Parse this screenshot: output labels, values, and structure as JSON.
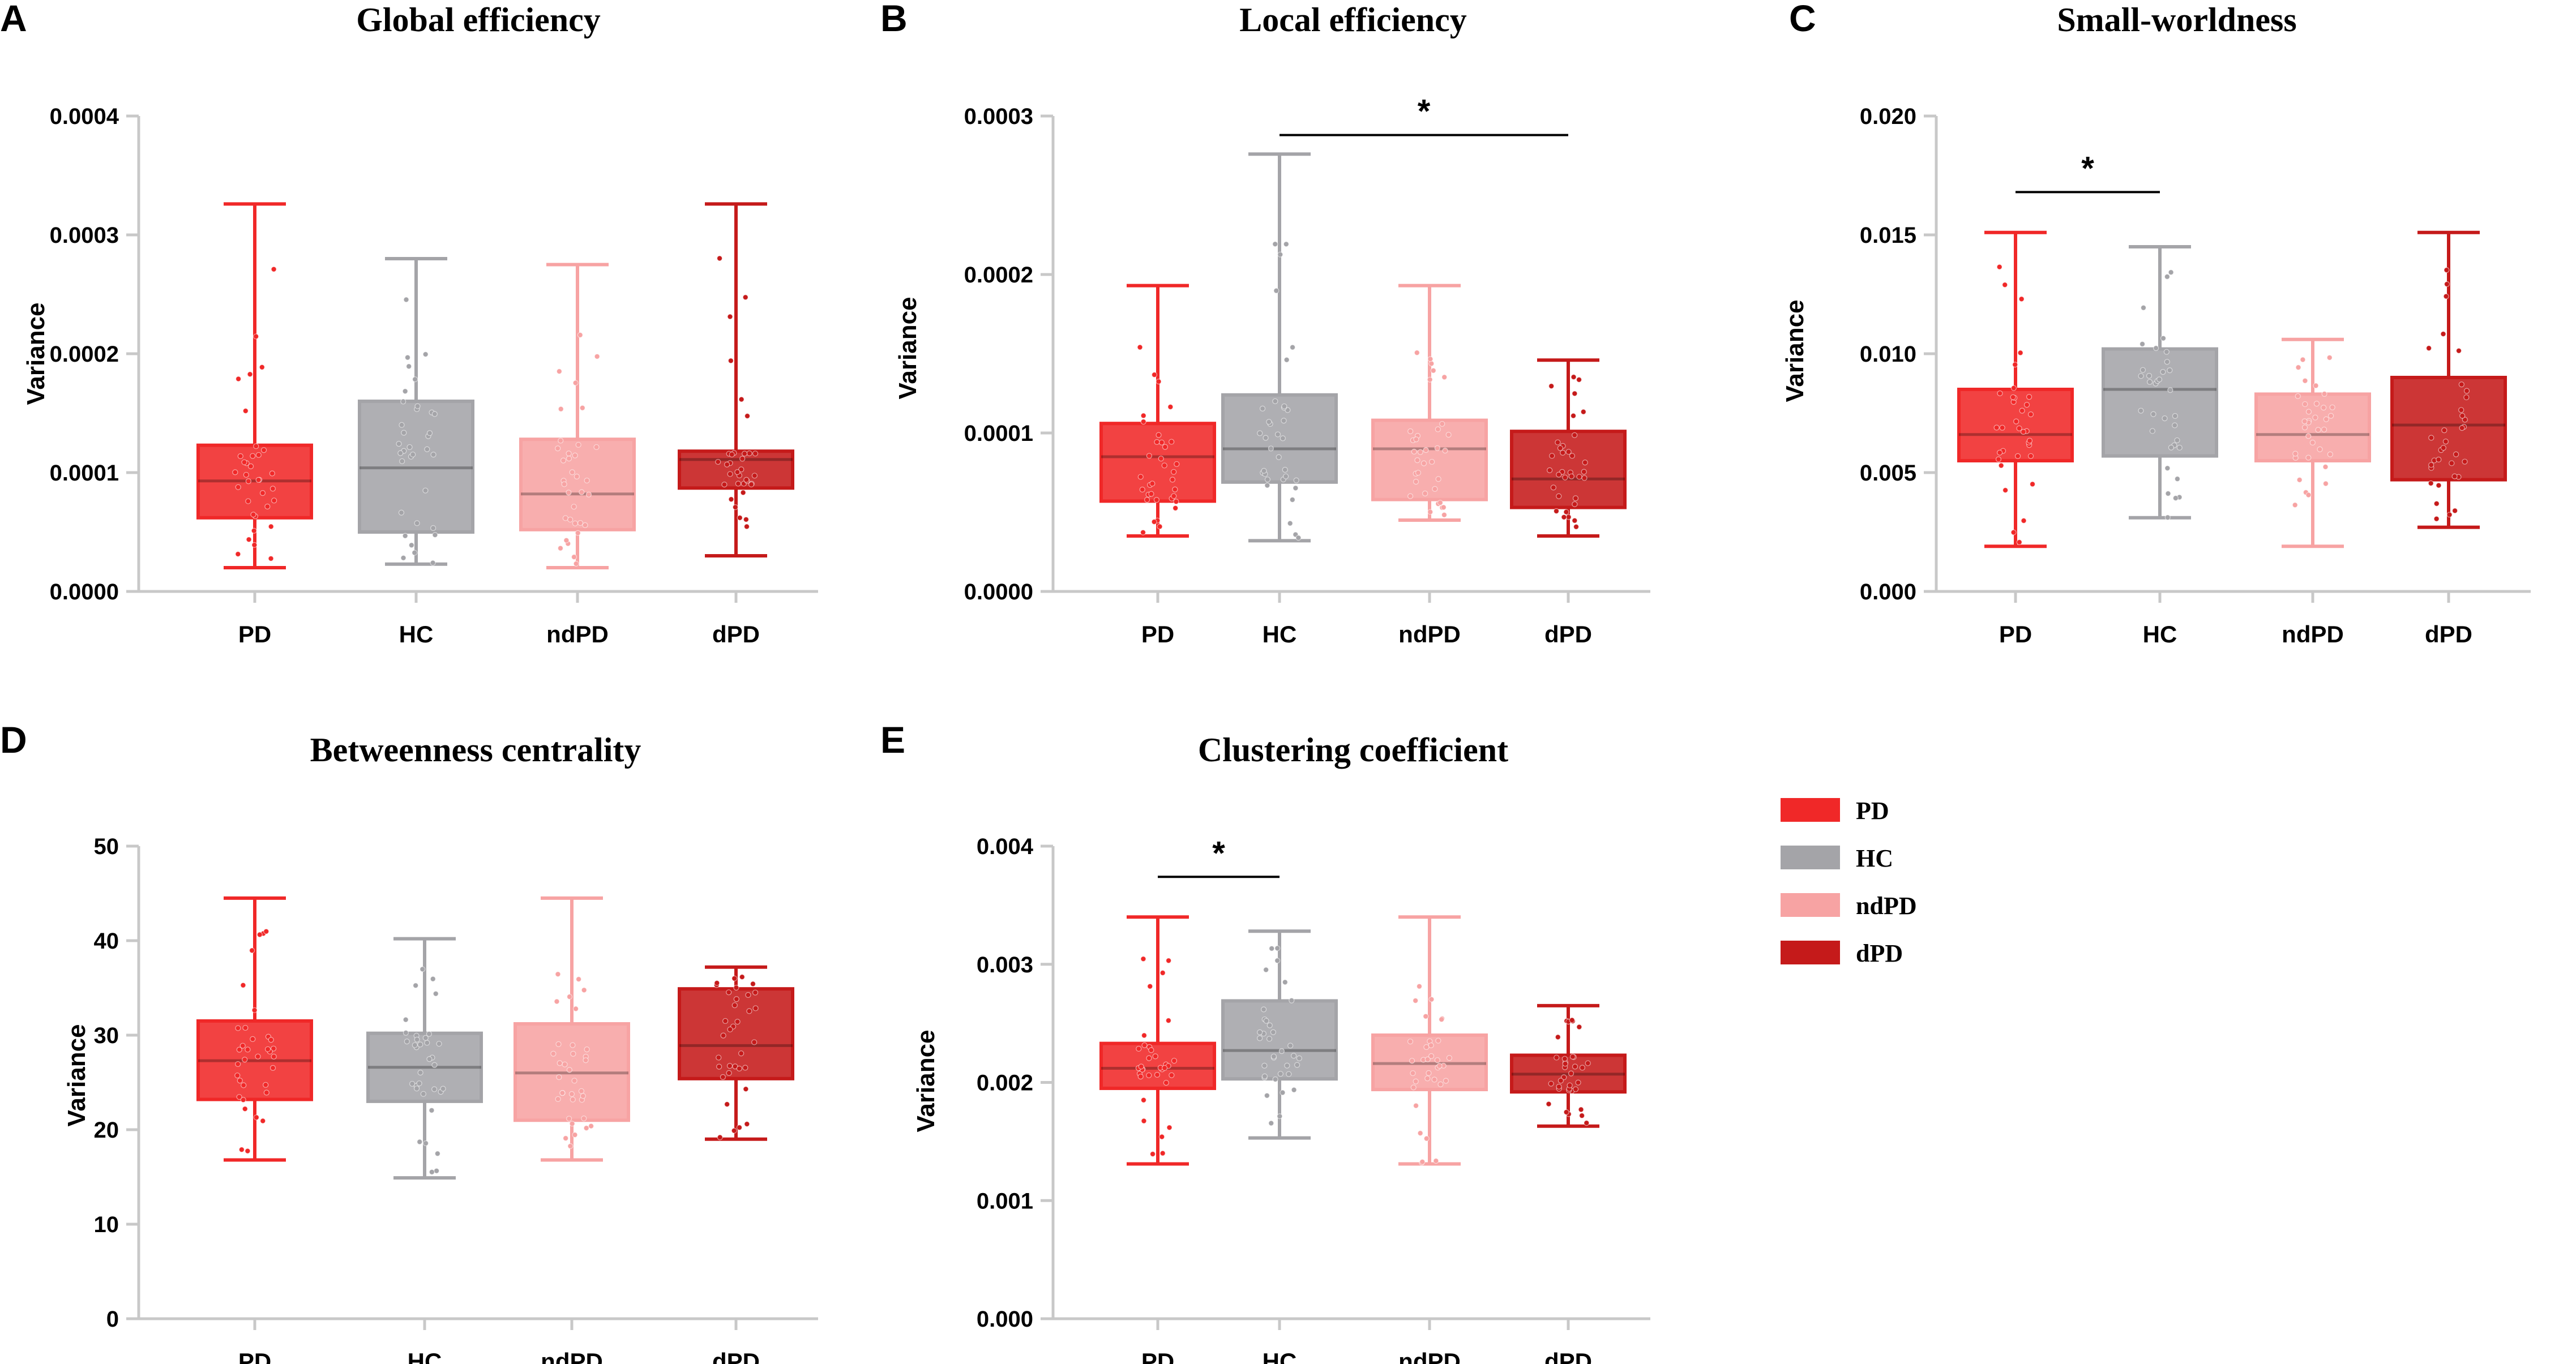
{
  "colors": {
    "PD": "#f02828",
    "HC": "#a4a4a8",
    "ndPD": "#f7a3a3",
    "dPD": "#c51a1a",
    "axis": "#c8c8c8"
  },
  "legend": {
    "entries": [
      {
        "label": "PD",
        "color": "#f02828"
      },
      {
        "label": "HC",
        "color": "#a4a4a8"
      },
      {
        "label": "ndPD",
        "color": "#f7a3a3"
      },
      {
        "label": "dPD",
        "color": "#c51a1a"
      }
    ]
  },
  "chart_data": [
    {
      "id": "A",
      "type": "box",
      "letter": "A",
      "title": "Global efficiency",
      "ylabel": "Variance",
      "ylim": [
        0,
        0.0004
      ],
      "yticks": [
        0,
        0.0001,
        0.0002,
        0.0003,
        0.0004
      ],
      "ytick_labels": [
        "0.0000",
        "0.0001",
        "0.0002",
        "0.0003",
        "0.0004"
      ],
      "categories": [
        "PD",
        "HC",
        "ndPD",
        "dPD"
      ],
      "boxes": [
        {
          "min": 2e-05,
          "q1": 6.2e-05,
          "median": 9.3e-05,
          "q3": 0.000123,
          "max": 0.000326
        },
        {
          "min": 2.3e-05,
          "q1": 5e-05,
          "median": 0.000104,
          "q3": 0.00016,
          "max": 0.00028
        },
        {
          "min": 2e-05,
          "q1": 5.2e-05,
          "median": 8.2e-05,
          "q3": 0.000128,
          "max": 0.000275
        },
        {
          "min": 3e-05,
          "q1": 8.7e-05,
          "median": 0.000111,
          "q3": 0.000118,
          "max": 0.000326
        }
      ],
      "significance": []
    },
    {
      "id": "B",
      "type": "box",
      "letter": "B",
      "title": "Local efficiency",
      "ylabel": "Variance",
      "ylim": [
        0,
        0.0003
      ],
      "yticks": [
        0,
        0.0001,
        0.0002,
        0.0003
      ],
      "ytick_labels": [
        "0.0000",
        "0.0001",
        "0.0002",
        "0.0003"
      ],
      "categories": [
        "PD",
        "HC",
        "ndPD",
        "dPD"
      ],
      "boxes": [
        {
          "min": 3.5e-05,
          "q1": 5.7e-05,
          "median": 8.5e-05,
          "q3": 0.000106,
          "max": 0.000193
        },
        {
          "min": 3.2e-05,
          "q1": 6.9e-05,
          "median": 9e-05,
          "q3": 0.000124,
          "max": 0.000276
        },
        {
          "min": 4.5e-05,
          "q1": 5.8e-05,
          "median": 9e-05,
          "q3": 0.000108,
          "max": 0.000193
        },
        {
          "min": 3.5e-05,
          "q1": 5.3e-05,
          "median": 7.1e-05,
          "q3": 0.000101,
          "max": 0.000146
        }
      ],
      "significance": [
        {
          "from": 1,
          "to": 3,
          "y": 0.000288,
          "label": "*"
        }
      ]
    },
    {
      "id": "C",
      "type": "box",
      "letter": "C",
      "title": "Small-worldness",
      "ylabel": "Variance",
      "ylim": [
        0,
        0.02
      ],
      "yticks": [
        0,
        0.005,
        0.01,
        0.015,
        0.02
      ],
      "ytick_labels": [
        "0.000",
        "0.005",
        "0.010",
        "0.015",
        "0.020"
      ],
      "categories": [
        "PD",
        "HC",
        "ndPD",
        "dPD"
      ],
      "boxes": [
        {
          "min": 0.0019,
          "q1": 0.0055,
          "median": 0.0066,
          "q3": 0.0085,
          "max": 0.0151
        },
        {
          "min": 0.0031,
          "q1": 0.0057,
          "median": 0.0085,
          "q3": 0.0102,
          "max": 0.0145
        },
        {
          "min": 0.0019,
          "q1": 0.0055,
          "median": 0.0066,
          "q3": 0.0083,
          "max": 0.0106
        },
        {
          "min": 0.0027,
          "q1": 0.0047,
          "median": 0.007,
          "q3": 0.009,
          "max": 0.0151
        }
      ],
      "significance": [
        {
          "from": 0,
          "to": 1,
          "y": 0.0168,
          "label": "*"
        }
      ]
    },
    {
      "id": "D",
      "type": "box",
      "letter": "D",
      "title": "Betweenness centrality",
      "ylabel": "Variance",
      "ylim": [
        0,
        50
      ],
      "yticks": [
        0,
        10,
        20,
        30,
        40,
        50
      ],
      "ytick_labels": [
        "0",
        "10",
        "20",
        "30",
        "40",
        "50"
      ],
      "categories": [
        "PD",
        "HC",
        "ndPD",
        "dPD"
      ],
      "boxes": [
        {
          "min": 16.8,
          "q1": 23.2,
          "median": 27.3,
          "q3": 31.5,
          "max": 44.5
        },
        {
          "min": 14.9,
          "q1": 23.0,
          "median": 26.6,
          "q3": 30.2,
          "max": 40.2
        },
        {
          "min": 16.8,
          "q1": 21.0,
          "median": 26.0,
          "q3": 31.2,
          "max": 44.5
        },
        {
          "min": 19.0,
          "q1": 25.4,
          "median": 28.9,
          "q3": 34.9,
          "max": 37.2
        }
      ],
      "significance": []
    },
    {
      "id": "E",
      "type": "box",
      "letter": "E",
      "title": "Clustering coefficient",
      "ylabel": "Variance",
      "ylim": [
        0,
        0.004
      ],
      "yticks": [
        0,
        0.001,
        0.002,
        0.003,
        0.004
      ],
      "ytick_labels": [
        "0.000",
        "0.001",
        "0.002",
        "0.003",
        "0.004"
      ],
      "categories": [
        "PD",
        "HC",
        "ndPD",
        "dPD"
      ],
      "boxes": [
        {
          "min": 0.00131,
          "q1": 0.00195,
          "median": 0.00212,
          "q3": 0.00233,
          "max": 0.0034
        },
        {
          "min": 0.00153,
          "q1": 0.00203,
          "median": 0.00227,
          "q3": 0.00269,
          "max": 0.00328
        },
        {
          "min": 0.00131,
          "q1": 0.00194,
          "median": 0.00216,
          "q3": 0.0024,
          "max": 0.0034
        },
        {
          "min": 0.00163,
          "q1": 0.00192,
          "median": 0.00207,
          "q3": 0.00223,
          "max": 0.00265
        }
      ],
      "significance": [
        {
          "from": 0,
          "to": 1,
          "y": 0.00374,
          "label": "*"
        }
      ]
    }
  ]
}
